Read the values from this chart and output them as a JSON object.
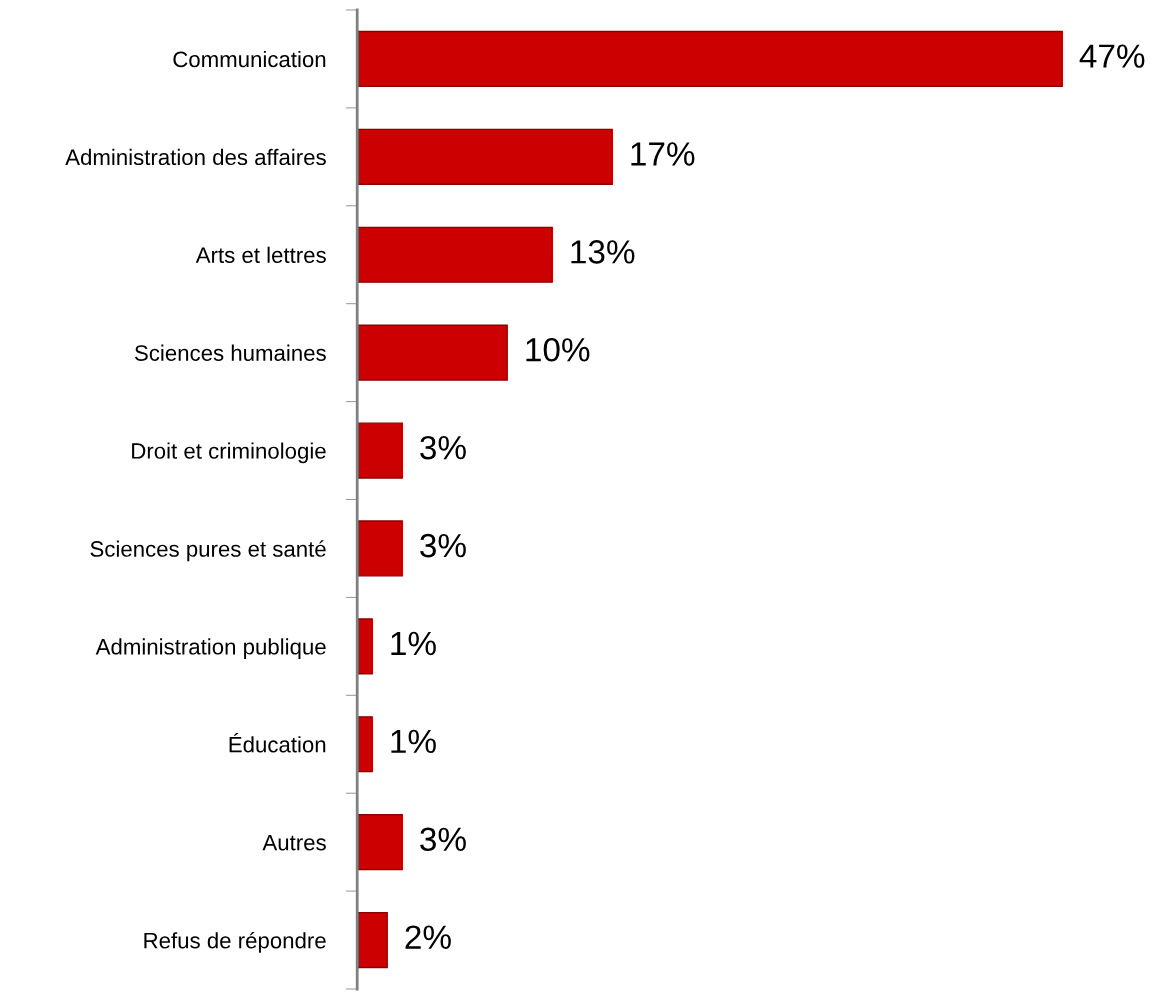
{
  "chart_data": {
    "type": "bar",
    "orientation": "horizontal",
    "categories": [
      "Communication",
      "Administration des affaires",
      "Arts et lettres",
      "Sciences humaines",
      "Droit et criminologie",
      "Sciences pures et santé",
      "Administration publique",
      "Éducation",
      "Autres",
      "Refus de répondre"
    ],
    "values": [
      47,
      17,
      13,
      10,
      3,
      3,
      1,
      1,
      3,
      2
    ],
    "value_labels": [
      "47%",
      "17%",
      "13%",
      "10%",
      "3%",
      "3%",
      "1%",
      "1%",
      "3%",
      "2%"
    ],
    "color": "#cc0000",
    "grid": false,
    "legend": false,
    "tick_labels": "y"
  }
}
